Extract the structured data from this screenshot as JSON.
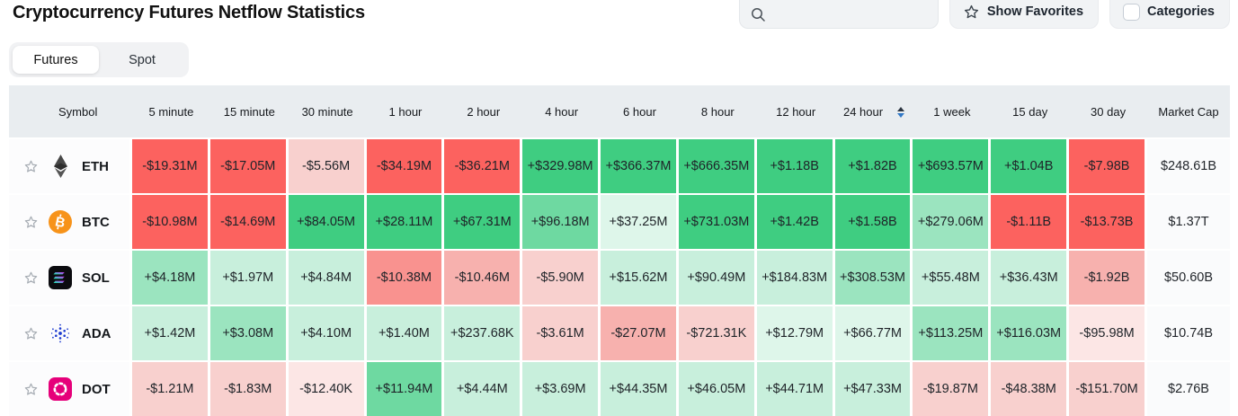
{
  "page": {
    "title": "Cryptocurrency Futures Netflow Statistics"
  },
  "toolbar": {
    "search_placeholder": "",
    "show_favorites": "Show Favorites",
    "categories": "Categories",
    "search_icon": "magnifier",
    "favorites_icon": "star-outline",
    "categories_control": "checkbox-unchecked"
  },
  "tabs": [
    {
      "label": "Futures",
      "active": true
    },
    {
      "label": "Spot",
      "active": false
    }
  ],
  "table": {
    "columns": [
      "Symbol",
      "5 minute",
      "15 minute",
      "30 minute",
      "1 hour",
      "2 hour",
      "4 hour",
      "6 hour",
      "8 hour",
      "12 hour",
      "24 hour",
      "1 week",
      "15 day",
      "30 day",
      "Market Cap"
    ],
    "sorted_column": "24 hour",
    "sort_direction": "desc",
    "heat_palette": {
      "r5": "#fc625f",
      "r4": "#f9928f",
      "r3": "#f7b1ae",
      "r2": "#f8d0ce",
      "r1": "#fce6e5",
      "g5": "#3fcd81",
      "g4": "#6ed9a1",
      "g3": "#9be4bf",
      "g2": "#c8efdc",
      "g1": "#def6ea"
    },
    "rows": [
      {
        "symbol": "ETH",
        "icon": "eth-logo",
        "market_cap": "$248.61B",
        "cells": [
          {
            "v": "-$19.31M",
            "c": "r5"
          },
          {
            "v": "-$17.05M",
            "c": "r5"
          },
          {
            "v": "-$5.56M",
            "c": "r2"
          },
          {
            "v": "-$34.19M",
            "c": "r5"
          },
          {
            "v": "-$36.21M",
            "c": "r5"
          },
          {
            "v": "+$329.98M",
            "c": "g5"
          },
          {
            "v": "+$366.37M",
            "c": "g5"
          },
          {
            "v": "+$666.35M",
            "c": "g5"
          },
          {
            "v": "+$1.18B",
            "c": "g5"
          },
          {
            "v": "+$1.82B",
            "c": "g5"
          },
          {
            "v": "+$693.57M",
            "c": "g5"
          },
          {
            "v": "+$1.04B",
            "c": "g5"
          },
          {
            "v": "-$7.98B",
            "c": "r5"
          }
        ]
      },
      {
        "symbol": "BTC",
        "icon": "btc-logo",
        "market_cap": "$1.37T",
        "cells": [
          {
            "v": "-$10.98M",
            "c": "r5"
          },
          {
            "v": "-$14.69M",
            "c": "r5"
          },
          {
            "v": "+$84.05M",
            "c": "g5"
          },
          {
            "v": "+$28.11M",
            "c": "g5"
          },
          {
            "v": "+$67.31M",
            "c": "g5"
          },
          {
            "v": "+$96.18M",
            "c": "g4"
          },
          {
            "v": "+$37.25M",
            "c": "g1"
          },
          {
            "v": "+$731.03M",
            "c": "g5"
          },
          {
            "v": "+$1.42B",
            "c": "g5"
          },
          {
            "v": "+$1.58B",
            "c": "g5"
          },
          {
            "v": "+$279.06M",
            "c": "g3"
          },
          {
            "v": "-$1.11B",
            "c": "r5"
          },
          {
            "v": "-$13.73B",
            "c": "r5"
          }
        ]
      },
      {
        "symbol": "SOL",
        "icon": "sol-logo",
        "market_cap": "$50.60B",
        "cells": [
          {
            "v": "+$4.18M",
            "c": "g3"
          },
          {
            "v": "+$1.97M",
            "c": "g2"
          },
          {
            "v": "+$4.84M",
            "c": "g2"
          },
          {
            "v": "-$10.38M",
            "c": "r4"
          },
          {
            "v": "-$10.46M",
            "c": "r3"
          },
          {
            "v": "-$5.90M",
            "c": "r2"
          },
          {
            "v": "+$15.62M",
            "c": "g2"
          },
          {
            "v": "+$90.49M",
            "c": "g2"
          },
          {
            "v": "+$184.83M",
            "c": "g2"
          },
          {
            "v": "+$308.53M",
            "c": "g3"
          },
          {
            "v": "+$55.48M",
            "c": "g2"
          },
          {
            "v": "+$36.43M",
            "c": "g2"
          },
          {
            "v": "-$1.92B",
            "c": "r3"
          }
        ]
      },
      {
        "symbol": "ADA",
        "icon": "ada-logo",
        "market_cap": "$10.74B",
        "cells": [
          {
            "v": "+$1.42M",
            "c": "g2"
          },
          {
            "v": "+$3.08M",
            "c": "g3"
          },
          {
            "v": "+$4.10M",
            "c": "g2"
          },
          {
            "v": "+$1.40M",
            "c": "g2"
          },
          {
            "v": "+$237.68K",
            "c": "g2"
          },
          {
            "v": "-$3.61M",
            "c": "r2"
          },
          {
            "v": "-$27.07M",
            "c": "r3"
          },
          {
            "v": "-$721.31K",
            "c": "r2"
          },
          {
            "v": "+$12.79M",
            "c": "g1"
          },
          {
            "v": "+$66.77M",
            "c": "g1"
          },
          {
            "v": "+$113.25M",
            "c": "g3"
          },
          {
            "v": "+$116.03M",
            "c": "g3"
          },
          {
            "v": "-$95.98M",
            "c": "r1"
          }
        ]
      },
      {
        "symbol": "DOT",
        "icon": "dot-logo",
        "market_cap": "$2.76B",
        "cells": [
          {
            "v": "-$1.21M",
            "c": "r2"
          },
          {
            "v": "-$1.83M",
            "c": "r2"
          },
          {
            "v": "-$12.40K",
            "c": "r1"
          },
          {
            "v": "+$11.94M",
            "c": "g4"
          },
          {
            "v": "+$4.44M",
            "c": "g2"
          },
          {
            "v": "+$3.69M",
            "c": "g2"
          },
          {
            "v": "+$44.35M",
            "c": "g2"
          },
          {
            "v": "+$46.05M",
            "c": "g2"
          },
          {
            "v": "+$44.71M",
            "c": "g2"
          },
          {
            "v": "+$47.33M",
            "c": "g2"
          },
          {
            "v": "-$19.87M",
            "c": "r2"
          },
          {
            "v": "-$48.38M",
            "c": "r2"
          },
          {
            "v": "-$151.70M",
            "c": "r2"
          }
        ]
      }
    ]
  }
}
